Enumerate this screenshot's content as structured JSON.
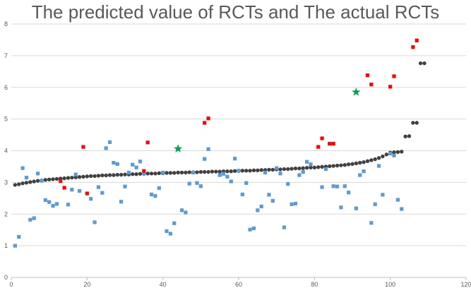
{
  "chart_data": {
    "type": "scatter",
    "title": "The predicted value of RCTs and The actual RCTs",
    "xlabel": "",
    "ylabel": "",
    "xlim": [
      0,
      120
    ],
    "ylim": [
      0,
      8
    ],
    "x_ticks": [
      0,
      20,
      40,
      60,
      80,
      100,
      120
    ],
    "y_ticks": [
      0,
      1,
      2,
      3,
      4,
      5,
      6,
      7,
      8
    ],
    "grid": "horizontal",
    "legend": "none",
    "series": [
      {
        "marker": "circle",
        "color": "#404040",
        "points": [
          [
            1,
            2.92
          ],
          [
            2,
            2.94
          ],
          [
            3,
            2.97
          ],
          [
            4,
            2.99
          ],
          [
            5,
            3.01
          ],
          [
            6,
            3.03
          ],
          [
            7,
            3.05
          ],
          [
            8,
            3.06
          ],
          [
            9,
            3.08
          ],
          [
            10,
            3.09
          ],
          [
            11,
            3.1
          ],
          [
            12,
            3.11
          ],
          [
            13,
            3.12
          ],
          [
            14,
            3.13
          ],
          [
            15,
            3.14
          ],
          [
            16,
            3.15
          ],
          [
            17,
            3.16
          ],
          [
            18,
            3.17
          ],
          [
            19,
            3.18
          ],
          [
            20,
            3.19
          ],
          [
            21,
            3.2
          ],
          [
            22,
            3.2
          ],
          [
            23,
            3.21
          ],
          [
            24,
            3.22
          ],
          [
            25,
            3.22
          ],
          [
            26,
            3.23
          ],
          [
            27,
            3.23
          ],
          [
            28,
            3.24
          ],
          [
            29,
            3.24
          ],
          [
            30,
            3.25
          ],
          [
            31,
            3.25
          ],
          [
            32,
            3.26
          ],
          [
            33,
            3.26
          ],
          [
            34,
            3.27
          ],
          [
            35,
            3.27
          ],
          [
            36,
            3.28
          ],
          [
            37,
            3.28
          ],
          [
            38,
            3.28
          ],
          [
            39,
            3.29
          ],
          [
            40,
            3.29
          ],
          [
            41,
            3.3
          ],
          [
            42,
            3.3
          ],
          [
            43,
            3.3
          ],
          [
            44,
            3.31
          ],
          [
            45,
            3.31
          ],
          [
            46,
            3.31
          ],
          [
            47,
            3.32
          ],
          [
            48,
            3.32
          ],
          [
            49,
            3.32
          ],
          [
            50,
            3.33
          ],
          [
            51,
            3.33
          ],
          [
            52,
            3.33
          ],
          [
            53,
            3.34
          ],
          [
            54,
            3.34
          ],
          [
            55,
            3.34
          ],
          [
            56,
            3.35
          ],
          [
            57,
            3.35
          ],
          [
            58,
            3.35
          ],
          [
            59,
            3.36
          ],
          [
            60,
            3.36
          ],
          [
            61,
            3.37
          ],
          [
            62,
            3.37
          ],
          [
            63,
            3.37
          ],
          [
            64,
            3.38
          ],
          [
            65,
            3.38
          ],
          [
            66,
            3.39
          ],
          [
            67,
            3.39
          ],
          [
            68,
            3.4
          ],
          [
            69,
            3.4
          ],
          [
            70,
            3.41
          ],
          [
            71,
            3.41
          ],
          [
            72,
            3.42
          ],
          [
            73,
            3.42
          ],
          [
            74,
            3.43
          ],
          [
            75,
            3.44
          ],
          [
            76,
            3.44
          ],
          [
            77,
            3.45
          ],
          [
            78,
            3.46
          ],
          [
            79,
            3.47
          ],
          [
            80,
            3.47
          ],
          [
            81,
            3.48
          ],
          [
            82,
            3.49
          ],
          [
            83,
            3.5
          ],
          [
            84,
            3.51
          ],
          [
            85,
            3.52
          ],
          [
            86,
            3.53
          ],
          [
            87,
            3.54
          ],
          [
            88,
            3.55
          ],
          [
            89,
            3.57
          ],
          [
            90,
            3.58
          ],
          [
            91,
            3.6
          ],
          [
            92,
            3.62
          ],
          [
            93,
            3.64
          ],
          [
            94,
            3.67
          ],
          [
            95,
            3.7
          ],
          [
            96,
            3.73
          ],
          [
            97,
            3.77
          ],
          [
            98,
            3.82
          ],
          [
            99,
            3.88
          ],
          [
            100,
            3.94
          ],
          [
            101,
            3.95
          ],
          [
            102,
            3.96
          ],
          [
            103,
            3.97
          ],
          [
            104,
            4.45
          ],
          [
            105,
            4.46
          ],
          [
            106,
            4.88
          ],
          [
            107,
            4.88
          ],
          [
            108,
            6.76
          ],
          [
            109,
            6.76
          ]
        ]
      },
      {
        "marker": "square",
        "color": "#5b9bd5",
        "points": [
          [
            1,
            1.0
          ],
          [
            2,
            1.28
          ],
          [
            3,
            3.45
          ],
          [
            4,
            3.15
          ],
          [
            5,
            1.82
          ],
          [
            6,
            1.87
          ],
          [
            7,
            3.28
          ],
          [
            8,
            3.05
          ],
          [
            9,
            2.44
          ],
          [
            10,
            2.38
          ],
          [
            11,
            2.26
          ],
          [
            12,
            2.32
          ],
          [
            15,
            2.3
          ],
          [
            16,
            2.77
          ],
          [
            17,
            3.25
          ],
          [
            18,
            2.73
          ],
          [
            21,
            2.48
          ],
          [
            22,
            1.74
          ],
          [
            23,
            2.85
          ],
          [
            24,
            2.67
          ],
          [
            25,
            4.08
          ],
          [
            26,
            4.27
          ],
          [
            27,
            3.62
          ],
          [
            28,
            3.58
          ],
          [
            29,
            2.39
          ],
          [
            30,
            2.87
          ],
          [
            31,
            3.31
          ],
          [
            32,
            3.56
          ],
          [
            33,
            3.47
          ],
          [
            34,
            3.66
          ],
          [
            35,
            3.28
          ],
          [
            37,
            2.62
          ],
          [
            38,
            2.57
          ],
          [
            39,
            2.82
          ],
          [
            40,
            3.31
          ],
          [
            41,
            1.46
          ],
          [
            42,
            1.38
          ],
          [
            43,
            1.71
          ],
          [
            45,
            2.12
          ],
          [
            46,
            2.05
          ],
          [
            47,
            2.96
          ],
          [
            48,
            3.31
          ],
          [
            49,
            2.98
          ],
          [
            50,
            2.88
          ],
          [
            51,
            3.74
          ],
          [
            52,
            4.05
          ],
          [
            55,
            3.23
          ],
          [
            56,
            3.27
          ],
          [
            57,
            3.18
          ],
          [
            58,
            3.03
          ],
          [
            59,
            3.75
          ],
          [
            60,
            3.37
          ],
          [
            61,
            2.62
          ],
          [
            62,
            2.98
          ],
          [
            63,
            1.51
          ],
          [
            64,
            1.55
          ],
          [
            65,
            2.12
          ],
          [
            66,
            2.24
          ],
          [
            67,
            3.31
          ],
          [
            68,
            2.61
          ],
          [
            69,
            2.42
          ],
          [
            70,
            3.45
          ],
          [
            71,
            3.28
          ],
          [
            72,
            1.58
          ],
          [
            73,
            2.95
          ],
          [
            74,
            2.31
          ],
          [
            75,
            2.33
          ],
          [
            76,
            3.23
          ],
          [
            77,
            3.33
          ],
          [
            78,
            3.65
          ],
          [
            79,
            3.57
          ],
          [
            82,
            2.85
          ],
          [
            83,
            3.42
          ],
          [
            85,
            2.88
          ],
          [
            86,
            2.87
          ],
          [
            87,
            2.21
          ],
          [
            88,
            2.88
          ],
          [
            89,
            2.68
          ],
          [
            91,
            2.18
          ],
          [
            92,
            3.23
          ],
          [
            93,
            3.35
          ],
          [
            95,
            1.72
          ],
          [
            96,
            2.31
          ],
          [
            97,
            3.52
          ],
          [
            98,
            2.61
          ],
          [
            100,
            3.91
          ],
          [
            101,
            3.85
          ],
          [
            102,
            2.45
          ],
          [
            103,
            2.16
          ]
        ]
      },
      {
        "marker": "square",
        "color": "#ff0000",
        "points": [
          [
            13,
            3.04
          ],
          [
            14,
            2.83
          ],
          [
            19,
            4.12
          ],
          [
            20,
            2.65
          ],
          [
            35,
            3.36
          ],
          [
            36,
            4.26
          ],
          [
            51,
            4.88
          ],
          [
            52,
            5.02
          ],
          [
            81,
            4.12
          ],
          [
            82,
            4.39
          ],
          [
            84,
            4.22
          ],
          [
            85,
            4.22
          ],
          [
            94,
            6.38
          ],
          [
            95,
            6.09
          ],
          [
            100,
            6.02
          ],
          [
            101,
            6.35
          ],
          [
            106,
            7.27
          ],
          [
            107,
            7.48
          ]
        ]
      },
      {
        "marker": "star",
        "color": "#00a651",
        "points": [
          [
            44,
            4.06
          ],
          [
            91,
            5.85
          ]
        ]
      }
    ]
  }
}
